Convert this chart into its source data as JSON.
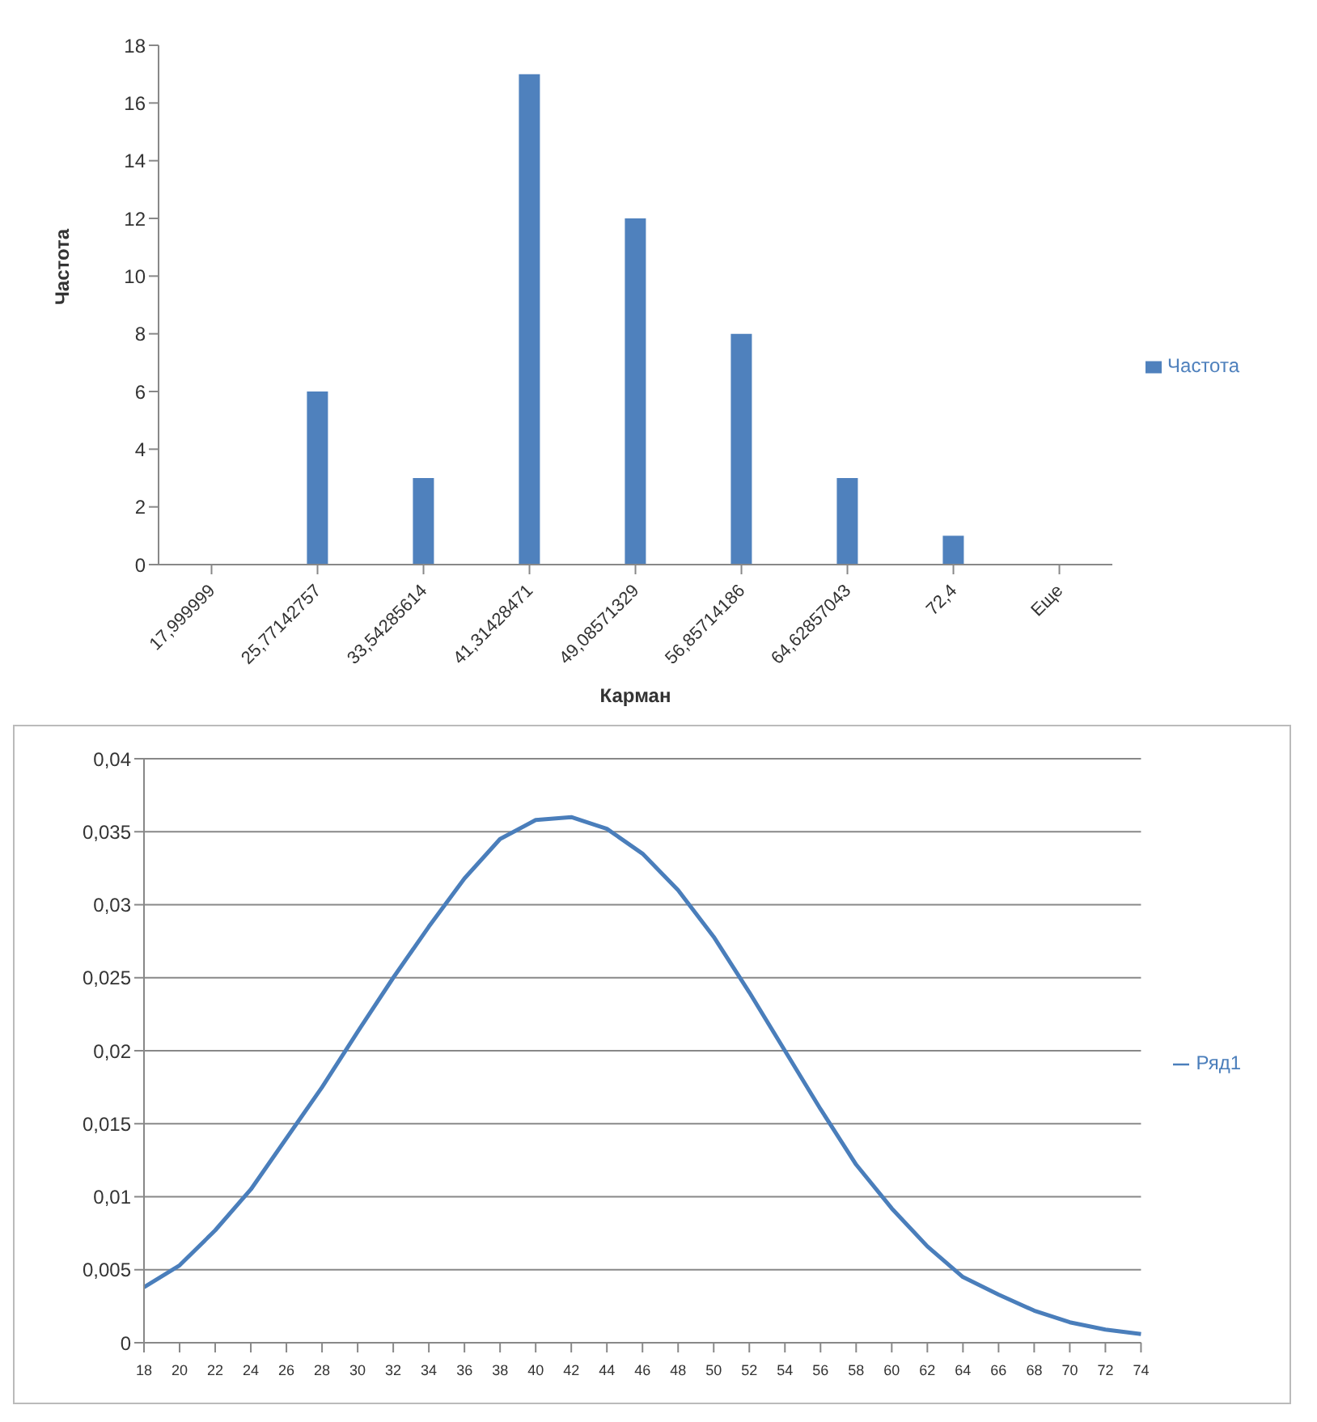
{
  "chart_data": [
    {
      "type": "bar",
      "xlabel": "Карман",
      "ylabel": "Частота",
      "categories": [
        "17,999999",
        "25,77142757",
        "33,54285614",
        "41,31428471",
        "49,08571329",
        "56,85714186",
        "64,62857043",
        "72,4",
        "Еще"
      ],
      "series": [
        {
          "name": "Частота",
          "color": "#4f81bd",
          "values": [
            0,
            6,
            3,
            17,
            12,
            8,
            3,
            1,
            0
          ]
        }
      ],
      "ylim": [
        0,
        18
      ],
      "yticks": [
        0,
        2,
        4,
        6,
        8,
        10,
        12,
        14,
        16,
        18
      ],
      "grid": false,
      "legend": "right"
    },
    {
      "type": "line",
      "categories": [
        "18",
        "20",
        "22",
        "24",
        "26",
        "28",
        "30",
        "32",
        "34",
        "36",
        "38",
        "40",
        "42",
        "44",
        "46",
        "48",
        "50",
        "52",
        "54",
        "56",
        "58",
        "60",
        "62",
        "64",
        "66",
        "68",
        "70",
        "72",
        "74"
      ],
      "series": [
        {
          "name": "Ряд1",
          "color": "#4a7ebb",
          "values": [
            0.0038,
            0.0053,
            0.0077,
            0.0105,
            0.014,
            0.0175,
            0.0213,
            0.025,
            0.0285,
            0.0318,
            0.0345,
            0.0358,
            0.036,
            0.0352,
            0.0335,
            0.031,
            0.0278,
            0.024,
            0.02,
            0.016,
            0.0122,
            0.0092,
            0.0066,
            0.0045,
            0.0033,
            0.0022,
            0.0014,
            0.0009,
            0.0006
          ]
        }
      ],
      "ylim": [
        0,
        0.04
      ],
      "yticks": [
        0,
        {
          "value": 0.005,
          "label": "0,005"
        },
        {
          "value": 0.01,
          "label": "0,01"
        },
        {
          "value": 0.015,
          "label": "0,015"
        },
        {
          "value": 0.02,
          "label": "0,02"
        },
        {
          "value": 0.025,
          "label": "0,025"
        },
        {
          "value": 0.03,
          "label": "0,03"
        },
        {
          "value": 0.035,
          "label": "0,035"
        },
        {
          "value": 0.04,
          "label": "0,04"
        }
      ],
      "grid": "y",
      "legend": "right",
      "marker": "none"
    }
  ]
}
